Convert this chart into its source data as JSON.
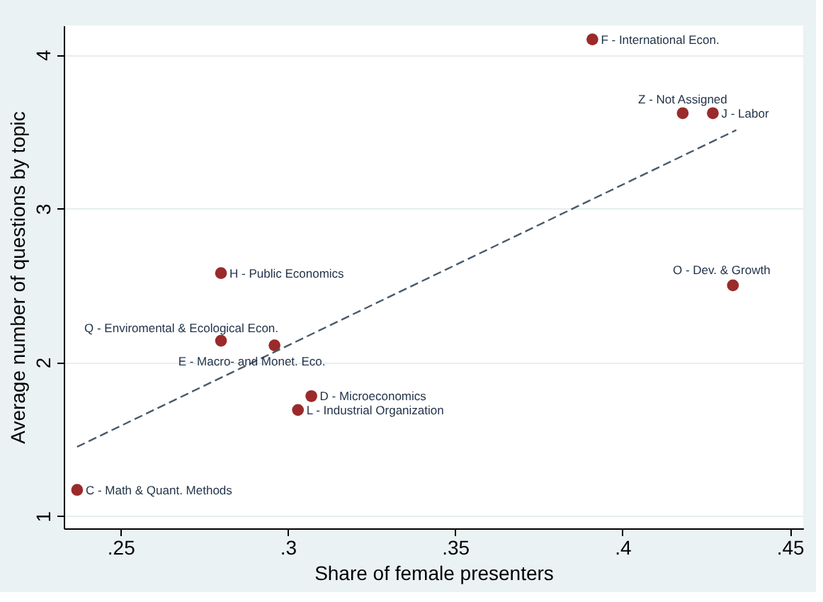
{
  "chart_data": {
    "type": "scatter",
    "xlabel": "Share of female presenters",
    "ylabel": "Average number of questions by topic",
    "x": [
      0.391,
      0.418,
      0.427,
      0.28,
      0.433,
      0.28,
      0.296,
      0.307,
      0.303,
      0.237
    ],
    "series": [
      {
        "color": "#9b2a2a",
        "values": [
          4.1,
          3.62,
          3.62,
          2.58,
          2.5,
          2.14,
          2.11,
          1.78,
          1.69,
          1.17
        ]
      },
      {
        "type": "line",
        "color": "#4a5a6a",
        "line_style": "dashed",
        "marker": "none",
        "x": [
          0.237,
          0.434
        ],
        "values": [
          1.45,
          3.51
        ]
      }
    ],
    "annotations": [
      {
        "text": "F - International Econ.",
        "x": 0.391,
        "y": 4.1
      },
      {
        "text": "Z - Not Assigned",
        "x": 0.418,
        "y": 3.62
      },
      {
        "text": "J - Labor",
        "x": 0.427,
        "y": 3.62
      },
      {
        "text": "H - Public Economics",
        "x": 0.28,
        "y": 2.58
      },
      {
        "text": "O - Dev. & Growth",
        "x": 0.433,
        "y": 2.5
      },
      {
        "text": "Q - Enviromental & Ecological Econ.",
        "x": 0.28,
        "y": 2.14
      },
      {
        "text": "E - Macro- and Monet. Eco.",
        "x": 0.296,
        "y": 2.11
      },
      {
        "text": "D - Microeconomics",
        "x": 0.307,
        "y": 1.78
      },
      {
        "text": "L - Industrial Organization",
        "x": 0.303,
        "y": 1.69
      },
      {
        "text": "C - Math & Quant. Methods",
        "x": 0.237,
        "y": 1.17
      }
    ],
    "xlim": [
      0.233,
      0.454
    ],
    "ylim": [
      0.92,
      4.19
    ],
    "xticks": [
      {
        "value": 0.25,
        "label": ".25"
      },
      {
        "value": 0.3,
        "label": ".3"
      },
      {
        "value": 0.35,
        "label": ".35"
      },
      {
        "value": 0.4,
        "label": ".4"
      },
      {
        "value": 0.45,
        "label": ".45"
      }
    ],
    "yticks": [
      1,
      2,
      3,
      4
    ],
    "grid": "y",
    "marker": "circle"
  }
}
